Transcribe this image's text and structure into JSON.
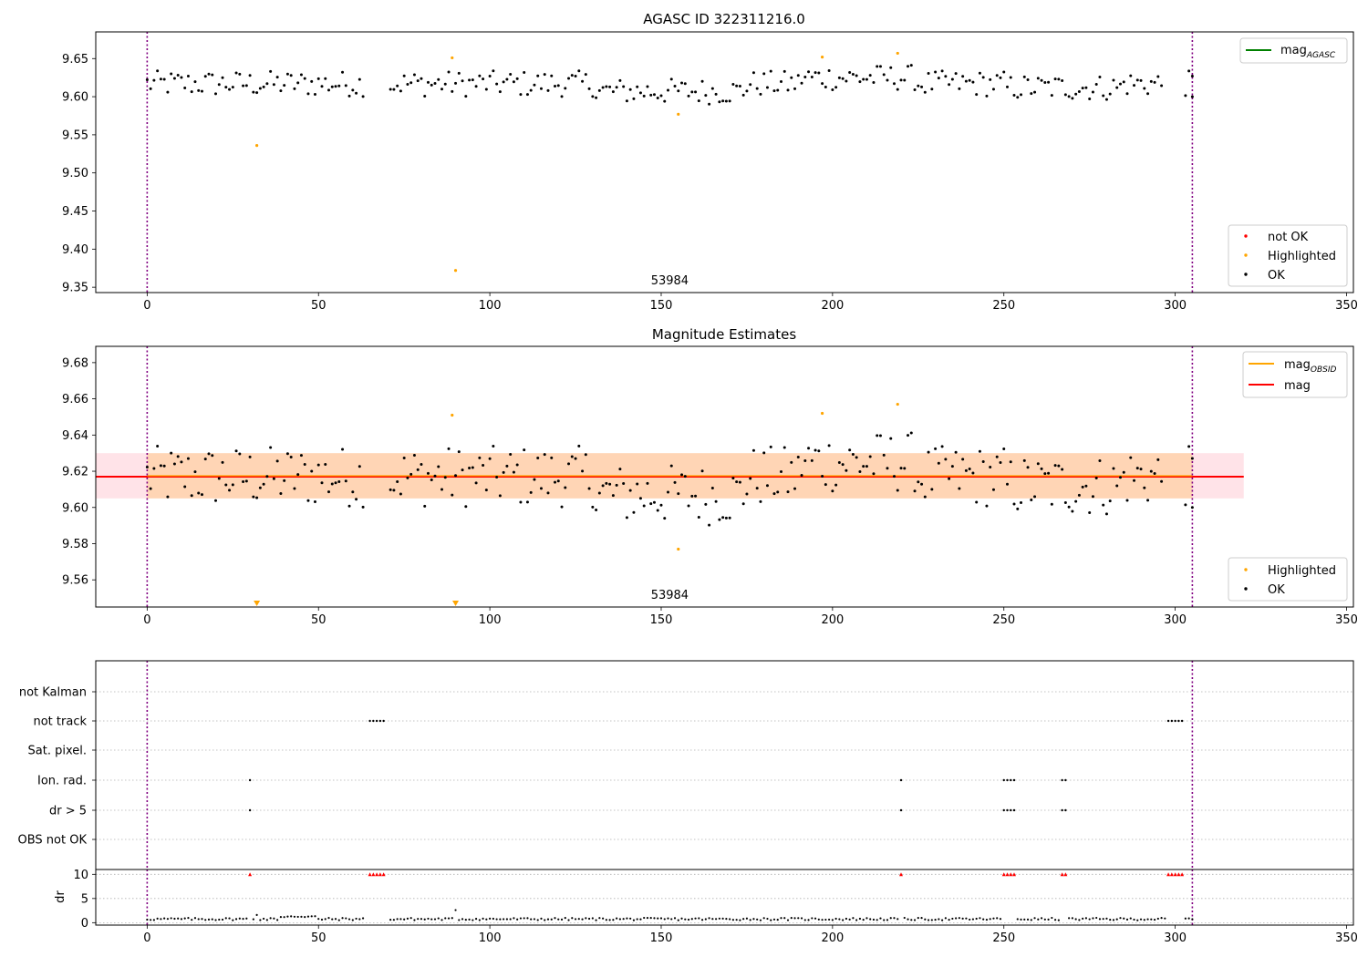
{
  "chart_data": [
    {
      "type": "scatter",
      "title": "AGASC ID 322311216.0",
      "xlabel": "",
      "ylabel": "",
      "xlim": [
        -15,
        352
      ],
      "ylim": [
        9.343,
        9.685
      ],
      "xticks": [
        0,
        50,
        100,
        150,
        200,
        250,
        300,
        350
      ],
      "yticks": [
        9.35,
        9.4,
        9.45,
        9.5,
        9.55,
        9.6,
        9.65
      ],
      "grid": false,
      "vlines": [
        0,
        305
      ],
      "annotations": [
        {
          "text": "53984",
          "x": 152.5,
          "y": 9.352
        }
      ],
      "legend_top": {
        "position": "top-right",
        "entries": [
          {
            "label_main": "mag",
            "label_sub": "AGASC",
            "color": "#008000",
            "kind": "line"
          }
        ]
      },
      "legend_bottom": {
        "position": "bottom-right",
        "entries": [
          {
            "label": "not OK",
            "color": "#ff0000",
            "kind": "dot"
          },
          {
            "label": "Highlighted",
            "color": "#ffa500",
            "kind": "dot"
          },
          {
            "label": "OK",
            "color": "#000000",
            "kind": "dot"
          }
        ]
      },
      "series": [
        {
          "name": "Highlighted",
          "color": "#ffa500",
          "x": [
            32,
            89,
            90,
            155,
            197,
            219
          ],
          "y": [
            9.536,
            9.651,
            9.372,
            9.577,
            9.652,
            9.657
          ]
        }
      ]
    },
    {
      "type": "scatter",
      "title": "Magnitude Estimates",
      "xlabel": "",
      "ylabel": "",
      "xlim": [
        -15,
        352
      ],
      "ylim": [
        9.545,
        9.689
      ],
      "xticks": [
        0,
        50,
        100,
        150,
        200,
        250,
        300,
        350
      ],
      "yticks": [
        9.56,
        9.58,
        9.6,
        9.62,
        9.64,
        9.66,
        9.68
      ],
      "grid": false,
      "vlines": [
        0,
        305
      ],
      "mag_line": {
        "value": 9.617,
        "color": "#ff0000"
      },
      "mag_band": {
        "low": 9.605,
        "high": 9.63,
        "x_end": 320,
        "color": "#ffc0cb"
      },
      "obsid_band": {
        "low": 9.605,
        "high": 9.63,
        "x_start": 0,
        "x_end": 305,
        "color": "#ffa500"
      },
      "annotations": [
        {
          "text": "53984",
          "x": 152.5,
          "y": 9.55
        }
      ],
      "legend_top": {
        "position": "top-right",
        "entries": [
          {
            "label_main": "mag",
            "label_sub": "OBSID",
            "color": "#ffa500",
            "kind": "line"
          },
          {
            "label_main": "mag",
            "label_sub": "",
            "color": "#ff0000",
            "kind": "line"
          }
        ]
      },
      "legend_bottom": {
        "position": "bottom-right",
        "entries": [
          {
            "label": "Highlighted",
            "color": "#ffa500",
            "kind": "dot"
          },
          {
            "label": "OK",
            "color": "#000000",
            "kind": "dot"
          }
        ]
      },
      "series": [
        {
          "name": "Highlighted",
          "color": "#ffa500",
          "x": [
            89,
            155,
            197,
            219
          ],
          "y": [
            9.651,
            9.577,
            9.652,
            9.657
          ]
        },
        {
          "name": "Highlighted (off scale)",
          "color": "#ffa500",
          "marker": "triangle-down",
          "x": [
            32,
            90
          ],
          "y": [
            9.547,
            9.547
          ]
        }
      ]
    },
    {
      "type": "scatter",
      "title": "",
      "xlabel": "",
      "ylabel": "",
      "xlim": [
        -15,
        352
      ],
      "xticks": [
        0,
        50,
        100,
        150,
        200,
        250,
        300,
        350
      ],
      "vlines": [
        0,
        305
      ],
      "flag_rows": [
        "not Kalman",
        "not track",
        "Sat. pixel.",
        "Ion. rad.",
        "dr > 5",
        "OBS not OK"
      ],
      "flags": {
        "not Kalman": [],
        "not track": [
          65,
          66,
          67,
          68,
          69,
          298,
          299,
          300,
          301,
          302
        ],
        "Sat. pixel.": [],
        "Ion. rad.": [
          30,
          220,
          250,
          251,
          252,
          253,
          267,
          268
        ],
        "dr > 5": [
          30,
          220,
          250,
          251,
          252,
          253,
          267,
          268
        ],
        "OBS not OK": []
      },
      "dr_panel": {
        "ylabel": "dr",
        "ylim": [
          -0.5,
          11
        ],
        "yticks": [
          0,
          5,
          10
        ],
        "clip_value": 10,
        "clip_color": "#ff0000",
        "clipped_x": [
          30,
          65,
          66,
          67,
          68,
          69,
          220,
          250,
          251,
          252,
          253,
          267,
          268,
          298,
          299,
          300,
          301,
          302
        ]
      }
    }
  ],
  "tick_labels": {
    "x": [
      "0",
      "50",
      "100",
      "150",
      "200",
      "250",
      "300",
      "350"
    ],
    "panel1_y": [
      "9.35",
      "9.40",
      "9.45",
      "9.50",
      "9.55",
      "9.60",
      "9.65"
    ],
    "panel2_y": [
      "9.56",
      "9.58",
      "9.60",
      "9.62",
      "9.64",
      "9.66",
      "9.68"
    ],
    "dr_y": [
      "0",
      "5",
      "10"
    ]
  }
}
